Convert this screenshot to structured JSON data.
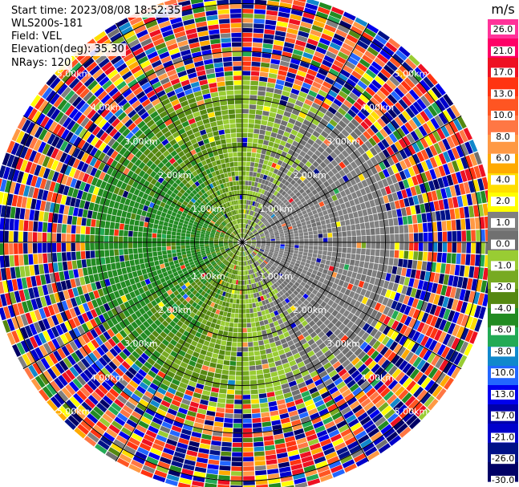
{
  "header": {
    "start_time": "Start time: 2023/08/08 18:52:35",
    "instrument": "WLS200s-181",
    "field": "Field: VEL",
    "elevation": "Elevation(deg): 35.30",
    "nrays": "NRays: 120"
  },
  "colorbar": {
    "unit": "m/s",
    "ticks": [
      "26.0",
      "21.0",
      "17.0",
      "13.0",
      "10.0",
      "8.0",
      "6.0",
      "4.0",
      "2.0",
      "1.0",
      "0.0",
      "-1.0",
      "-2.0",
      "-4.0",
      "-6.0",
      "-8.0",
      "-10.0",
      "-13.0",
      "-17.0",
      "-21.0",
      "-26.0",
      "-30.0"
    ],
    "colors": [
      "#ff3399",
      "#ff0066",
      "#ee1122",
      "#ff3311",
      "#ff5522",
      "#ff7744",
      "#ff9944",
      "#ffaa00",
      "#ffdd00",
      "#ffff00",
      "#808080",
      "#707070",
      "#99cc33",
      "#77aa22",
      "#558811",
      "#228b22",
      "#22aa55",
      "#1188cc",
      "#2266ff",
      "#0000ee",
      "#0000aa",
      "#0000cc",
      "#001188",
      "#000066"
    ]
  },
  "chart_data": {
    "type": "heatmap",
    "projection": "polar-ppi",
    "field": "VEL",
    "unit": "m/s",
    "nrays": 120,
    "elevation_deg": 35.3,
    "range_rings_km": [
      1,
      2,
      3,
      4,
      5
    ],
    "ring_labels": [
      "1.00km",
      "2.00km",
      "3.00km",
      "4.00km",
      "5.00km"
    ],
    "spokes_deg": [
      0,
      30,
      60,
      90,
      120,
      150,
      180,
      210,
      240,
      270,
      300,
      330
    ],
    "max_range_km": 5.3,
    "pattern": {
      "toward_sector_center_deg": 270,
      "away_sector_center_deg": 90,
      "near_range_speed_ms": 3,
      "outer_range_noise": true
    }
  }
}
